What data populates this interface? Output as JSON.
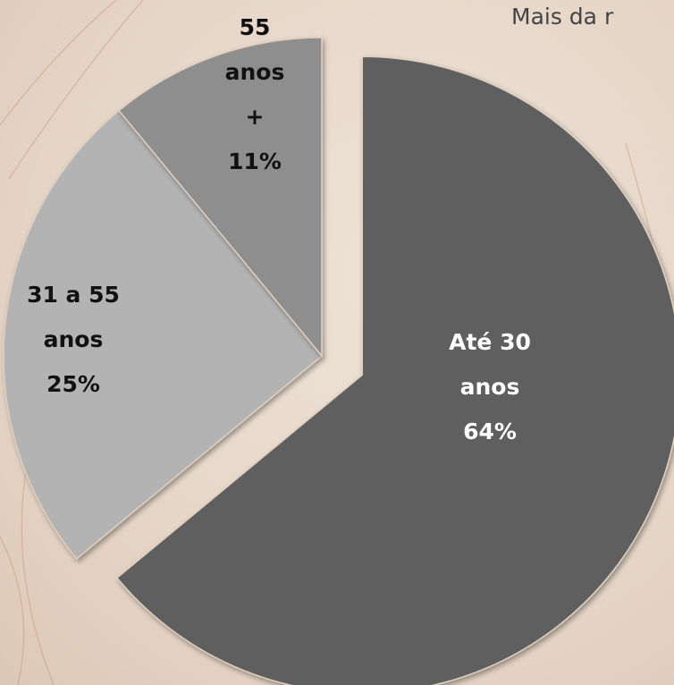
{
  "chart_data": {
    "type": "pie",
    "annotation": "Mais da r",
    "categories": [
      "Até 30 anos",
      "31 a 55 anos",
      "55 anos +"
    ],
    "values": [
      64,
      25,
      11
    ],
    "value_labels": [
      "64%",
      "25%",
      "11%"
    ],
    "colors": [
      "#5e5e5e",
      "#b3b3b3",
      "#8e8e8e"
    ]
  }
}
